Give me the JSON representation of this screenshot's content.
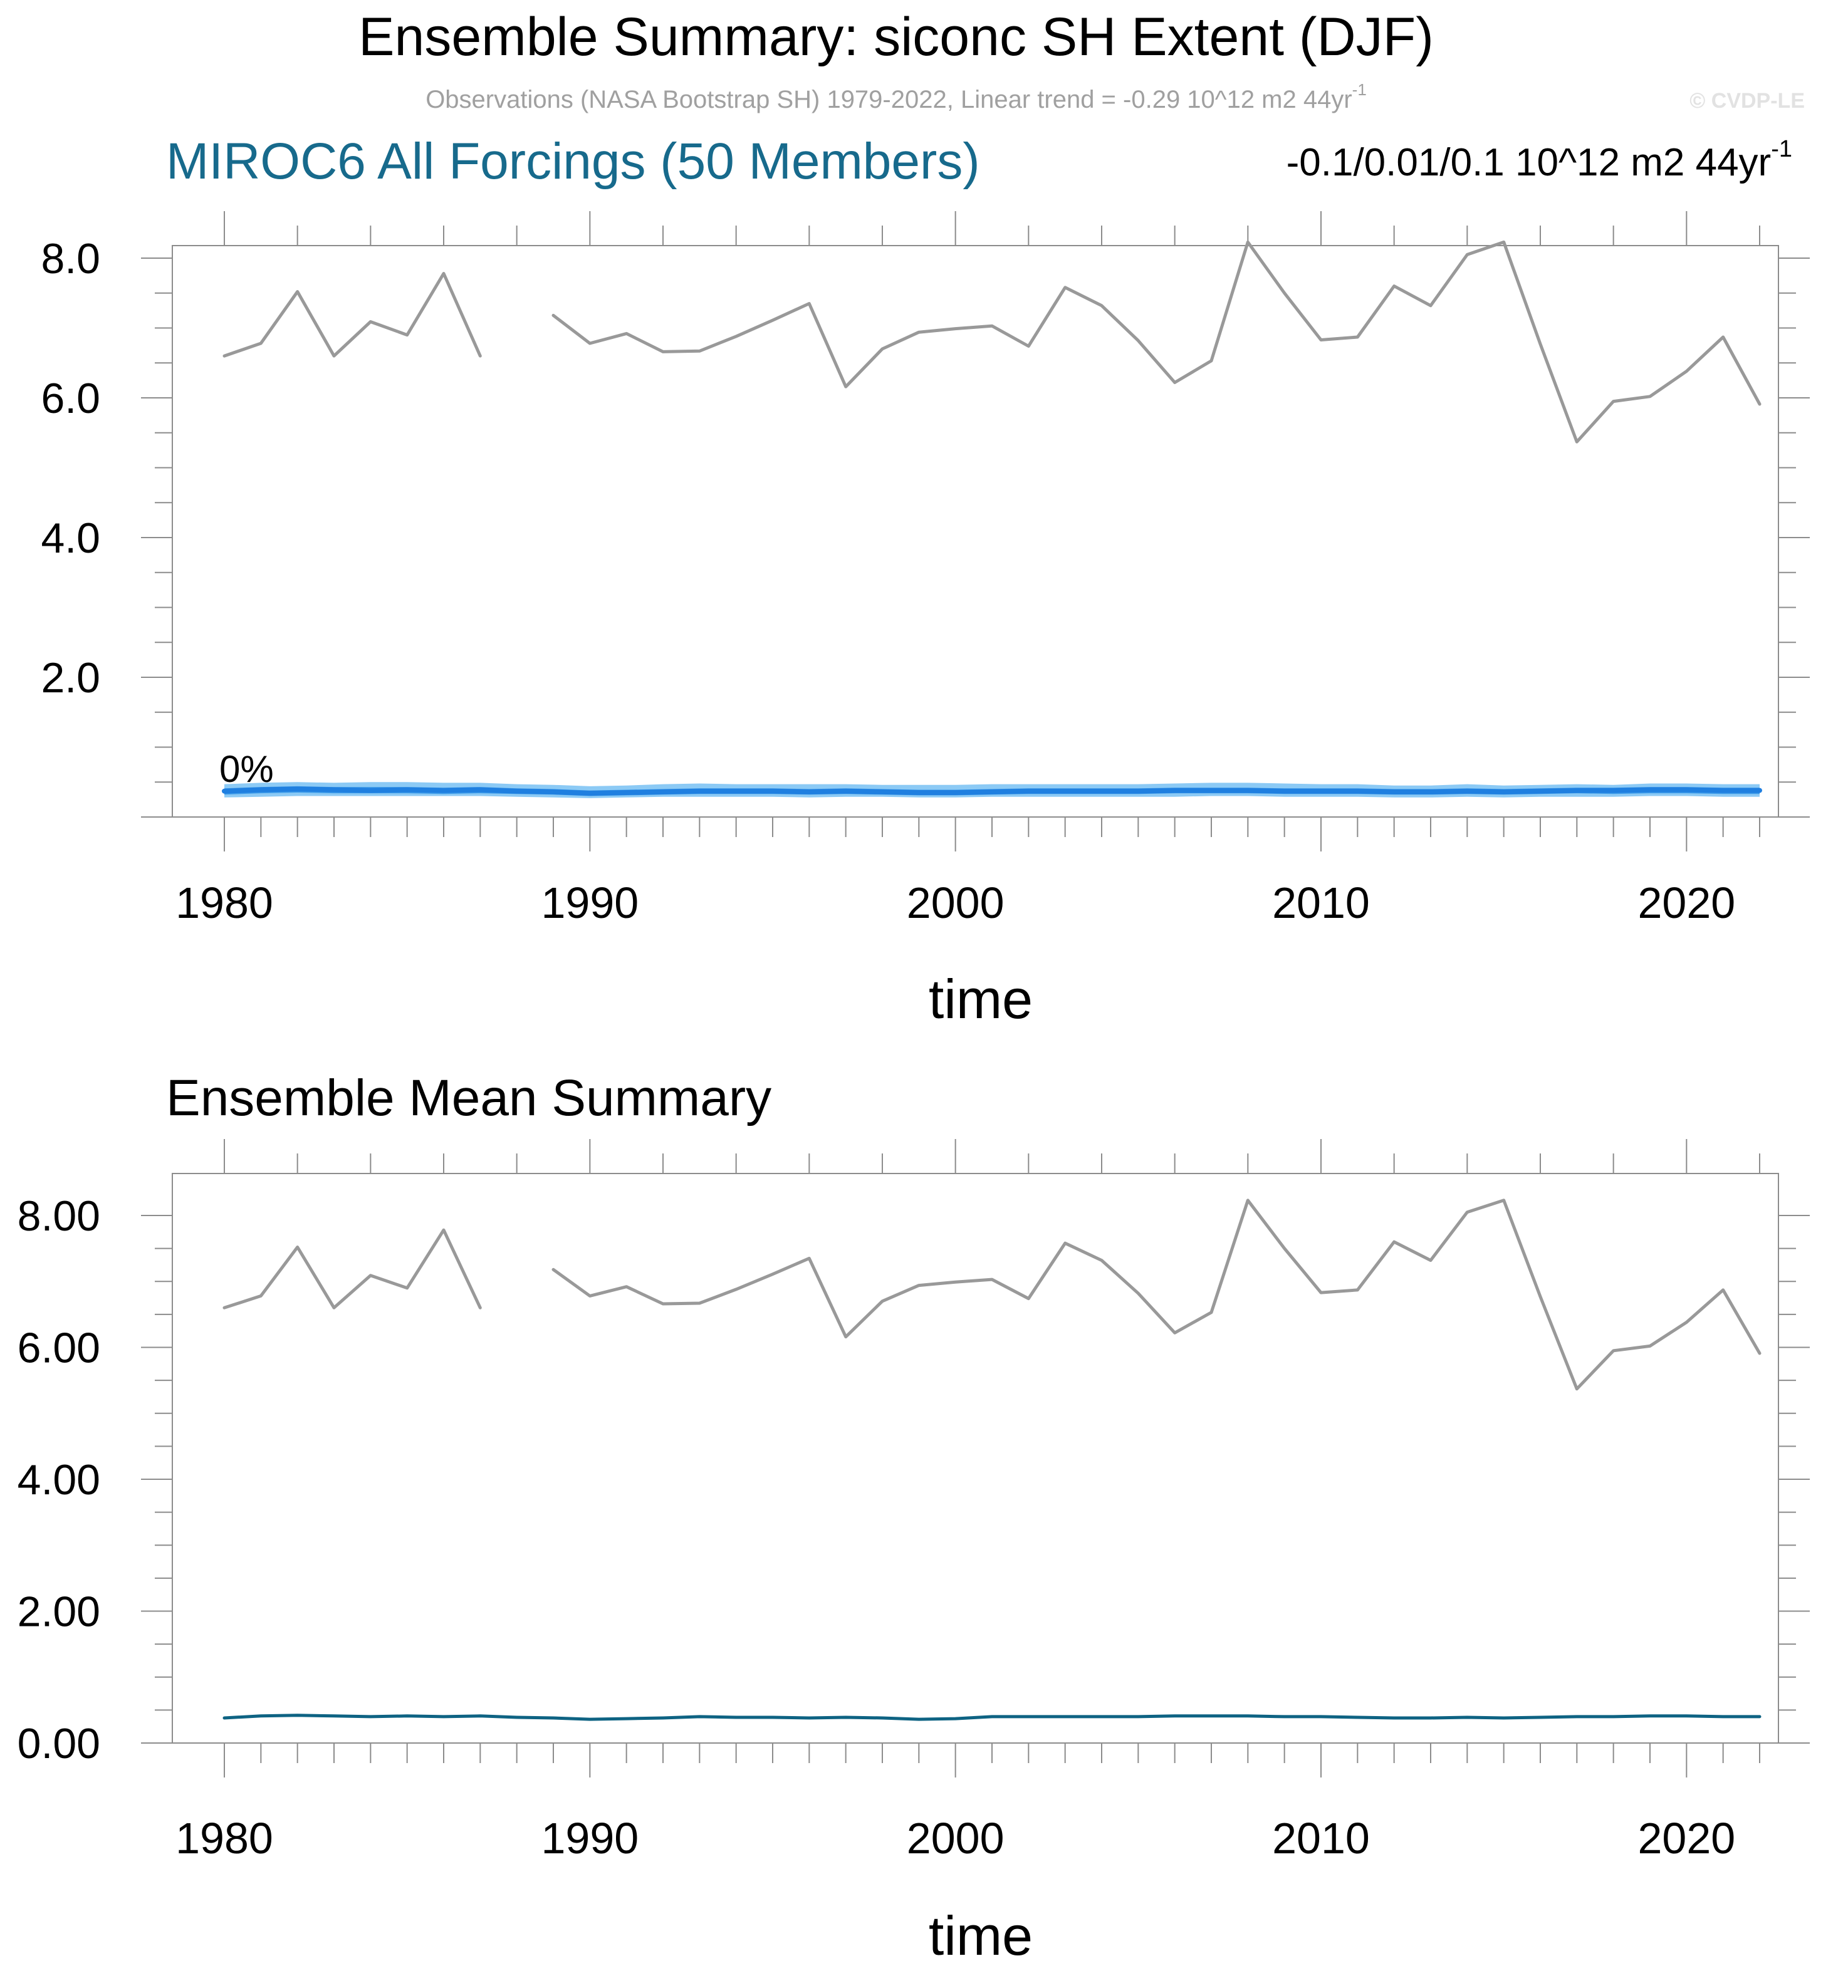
{
  "header": {
    "title": "Ensemble Summary: siconc SH Extent (DJF)",
    "obs_note": "Observations (NASA Bootstrap SH) 1979-2022, Linear trend = -0.29 10^12 m2 44yr",
    "obs_note_sup": "-1",
    "copyright": "© CVDP-LE"
  },
  "colors": {
    "obs": "#999999",
    "ens_spread_light": "#8ccaf5",
    "ens_spread_mid": "#3d9be9",
    "ens_median": "#1f7fe0",
    "ens_mean": "#0e6383",
    "model_title": "#176a8c"
  },
  "chart_data": [
    {
      "id": "ensemble-summary",
      "type": "line",
      "title": "MIROC6 All Forcings (50 Members)",
      "trend_label": "-0.1/0.01/0.1 10^12 m2 44yr",
      "trend_label_sup": "-1",
      "percent_label": "0%",
      "xlabel": "time",
      "ylabel": "",
      "xlim": [
        1980,
        2022
      ],
      "ylim": [
        0,
        8.0
      ],
      "x_ticks": [
        1980,
        1990,
        2000,
        2010,
        2020
      ],
      "x_tick_labels": [
        "1980",
        "1990",
        "2000",
        "2010",
        "2020"
      ],
      "y_ticks": [
        2.0,
        4.0,
        6.0,
        8.0
      ],
      "y_tick_labels": [
        "2.0",
        "4.0",
        "6.0",
        "8.0"
      ],
      "series": [
        {
          "name": "",
          "role": "observations",
          "x": [
            1980,
            1981,
            1982,
            1983,
            1984,
            1985,
            1986,
            1987,
            1988,
            1989,
            1990,
            1991,
            1992,
            1993,
            1994,
            1995,
            1996,
            1997,
            1998,
            1999,
            2000,
            2001,
            2002,
            2003,
            2004,
            2005,
            2006,
            2007,
            2008,
            2009,
            2010,
            2011,
            2012,
            2013,
            2014,
            2015,
            2016,
            2017,
            2018,
            2019,
            2020,
            2021,
            2022
          ],
          "values": [
            6.6,
            6.78,
            7.52,
            6.6,
            7.09,
            6.9,
            7.78,
            6.6,
            null,
            7.18,
            6.78,
            6.92,
            6.66,
            6.67,
            6.88,
            7.11,
            7.35,
            6.16,
            6.7,
            6.94,
            6.99,
            7.03,
            6.74,
            7.58,
            7.32,
            6.82,
            6.22,
            6.53,
            8.23,
            7.5,
            6.83,
            6.87,
            7.6,
            7.32,
            8.05,
            8.23,
            6.77,
            5.37,
            5.95,
            6.02,
            6.38,
            6.87,
            5.91
          ]
        },
        {
          "name": "",
          "role": "ensemble median",
          "x": [
            1980,
            1981,
            1982,
            1983,
            1984,
            1985,
            1986,
            1987,
            1988,
            1989,
            1990,
            1991,
            1992,
            1993,
            1994,
            1995,
            1996,
            1997,
            1998,
            1999,
            2000,
            2001,
            2002,
            2003,
            2004,
            2005,
            2006,
            2007,
            2008,
            2009,
            2010,
            2011,
            2012,
            2013,
            2014,
            2015,
            2016,
            2017,
            2018,
            2019,
            2020,
            2021,
            2022
          ],
          "values": [
            0.37,
            0.39,
            0.4,
            0.39,
            0.38,
            0.39,
            0.38,
            0.39,
            0.37,
            0.36,
            0.34,
            0.35,
            0.36,
            0.37,
            0.37,
            0.37,
            0.36,
            0.37,
            0.36,
            0.35,
            0.35,
            0.36,
            0.37,
            0.37,
            0.37,
            0.37,
            0.38,
            0.38,
            0.38,
            0.37,
            0.37,
            0.37,
            0.36,
            0.36,
            0.37,
            0.36,
            0.37,
            0.38,
            0.38,
            0.39,
            0.39,
            0.38,
            0.38
          ]
        }
      ],
      "spread_outer_low": [
        0.28,
        0.29,
        0.3,
        0.3,
        0.3,
        0.3,
        0.3,
        0.3,
        0.29,
        0.28,
        0.27,
        0.28,
        0.29,
        0.29,
        0.29,
        0.29,
        0.28,
        0.29,
        0.29,
        0.28,
        0.28,
        0.29,
        0.29,
        0.29,
        0.29,
        0.29,
        0.29,
        0.3,
        0.3,
        0.29,
        0.29,
        0.29,
        0.28,
        0.28,
        0.29,
        0.28,
        0.29,
        0.29,
        0.29,
        0.3,
        0.3,
        0.29,
        0.29
      ],
      "spread_outer_high": [
        0.47,
        0.49,
        0.5,
        0.49,
        0.5,
        0.5,
        0.49,
        0.49,
        0.47,
        0.46,
        0.44,
        0.45,
        0.47,
        0.48,
        0.47,
        0.47,
        0.47,
        0.47,
        0.46,
        0.46,
        0.46,
        0.47,
        0.47,
        0.47,
        0.47,
        0.47,
        0.48,
        0.49,
        0.49,
        0.48,
        0.47,
        0.47,
        0.45,
        0.45,
        0.47,
        0.45,
        0.46,
        0.47,
        0.46,
        0.48,
        0.48,
        0.47,
        0.47
      ],
      "spread_inner_low": [
        0.32,
        0.34,
        0.35,
        0.34,
        0.34,
        0.34,
        0.33,
        0.34,
        0.33,
        0.32,
        0.3,
        0.31,
        0.32,
        0.33,
        0.33,
        0.33,
        0.32,
        0.33,
        0.32,
        0.31,
        0.31,
        0.32,
        0.33,
        0.33,
        0.33,
        0.33,
        0.34,
        0.34,
        0.34,
        0.33,
        0.33,
        0.33,
        0.32,
        0.32,
        0.33,
        0.32,
        0.33,
        0.34,
        0.33,
        0.34,
        0.34,
        0.33,
        0.33
      ],
      "spread_inner_high": [
        0.41,
        0.43,
        0.44,
        0.43,
        0.43,
        0.43,
        0.42,
        0.43,
        0.41,
        0.4,
        0.38,
        0.39,
        0.4,
        0.41,
        0.41,
        0.41,
        0.4,
        0.41,
        0.4,
        0.39,
        0.39,
        0.4,
        0.41,
        0.41,
        0.41,
        0.41,
        0.42,
        0.42,
        0.42,
        0.41,
        0.41,
        0.41,
        0.4,
        0.4,
        0.41,
        0.4,
        0.41,
        0.42,
        0.42,
        0.43,
        0.43,
        0.42,
        0.42
      ]
    },
    {
      "id": "ensemble-mean-summary",
      "type": "line",
      "title": "Ensemble Mean Summary",
      "xlabel": "time",
      "ylabel": "",
      "xlim": [
        1980,
        2022
      ],
      "ylim": [
        0,
        8.0
      ],
      "x_ticks": [
        1980,
        1990,
        2000,
        2010,
        2020
      ],
      "x_tick_labels": [
        "1980",
        "1990",
        "2000",
        "2010",
        "2020"
      ],
      "y_ticks": [
        0,
        2.0,
        4.0,
        6.0,
        8.0
      ],
      "y_tick_labels": [
        "0.00",
        "2.00",
        "4.00",
        "6.00",
        "8.00"
      ],
      "series": [
        {
          "name": "",
          "role": "observations",
          "x": [
            1980,
            1981,
            1982,
            1983,
            1984,
            1985,
            1986,
            1987,
            1988,
            1989,
            1990,
            1991,
            1992,
            1993,
            1994,
            1995,
            1996,
            1997,
            1998,
            1999,
            2000,
            2001,
            2002,
            2003,
            2004,
            2005,
            2006,
            2007,
            2008,
            2009,
            2010,
            2011,
            2012,
            2013,
            2014,
            2015,
            2016,
            2017,
            2018,
            2019,
            2020,
            2021,
            2022
          ],
          "values": [
            6.6,
            6.78,
            7.52,
            6.6,
            7.09,
            6.9,
            7.78,
            6.6,
            null,
            7.18,
            6.78,
            6.92,
            6.66,
            6.67,
            6.88,
            7.11,
            7.35,
            6.16,
            6.7,
            6.94,
            6.99,
            7.03,
            6.74,
            7.58,
            7.32,
            6.82,
            6.22,
            6.53,
            8.23,
            7.5,
            6.83,
            6.87,
            7.6,
            7.32,
            8.05,
            8.23,
            6.77,
            5.37,
            5.95,
            6.02,
            6.38,
            6.87,
            5.91
          ]
        },
        {
          "name": "",
          "role": "ensemble mean",
          "x": [
            1980,
            1981,
            1982,
            1983,
            1984,
            1985,
            1986,
            1987,
            1988,
            1989,
            1990,
            1991,
            1992,
            1993,
            1994,
            1995,
            1996,
            1997,
            1998,
            1999,
            2000,
            2001,
            2002,
            2003,
            2004,
            2005,
            2006,
            2007,
            2008,
            2009,
            2010,
            2011,
            2012,
            2013,
            2014,
            2015,
            2016,
            2017,
            2018,
            2019,
            2020,
            2021,
            2022
          ],
          "values": [
            0.38,
            0.41,
            0.42,
            0.41,
            0.4,
            0.41,
            0.4,
            0.41,
            0.39,
            0.38,
            0.36,
            0.37,
            0.38,
            0.4,
            0.39,
            0.39,
            0.38,
            0.39,
            0.38,
            0.36,
            0.37,
            0.4,
            0.4,
            0.4,
            0.4,
            0.4,
            0.41,
            0.41,
            0.41,
            0.4,
            0.4,
            0.39,
            0.38,
            0.38,
            0.39,
            0.38,
            0.39,
            0.4,
            0.4,
            0.41,
            0.41,
            0.4,
            0.4
          ]
        }
      ]
    }
  ]
}
